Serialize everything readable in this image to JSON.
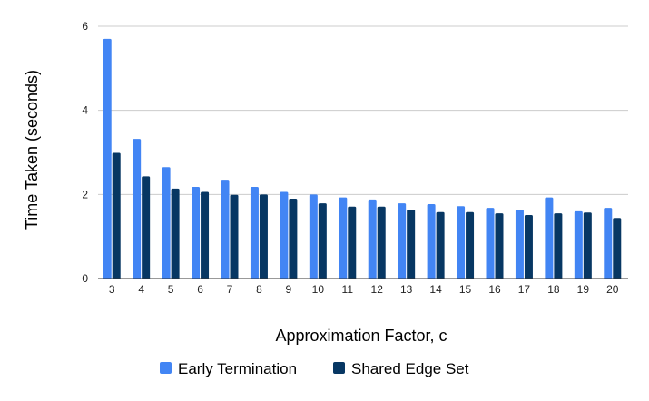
{
  "chart_data": {
    "type": "bar",
    "title": "",
    "xlabel": "Approximation Factor, c",
    "ylabel": "Time Taken (seconds)",
    "ylim": [
      0,
      6
    ],
    "yticks": [
      0,
      2,
      4,
      6
    ],
    "grid": true,
    "legend_position": "bottom",
    "categories": [
      "3",
      "4",
      "5",
      "6",
      "7",
      "8",
      "9",
      "10",
      "11",
      "12",
      "13",
      "14",
      "15",
      "16",
      "17",
      "18",
      "19",
      "20"
    ],
    "series": [
      {
        "name": "Early Termination",
        "color": "#4285f4",
        "values": [
          5.7,
          3.32,
          2.65,
          2.18,
          2.35,
          2.18,
          2.06,
          2.0,
          1.93,
          1.88,
          1.79,
          1.77,
          1.72,
          1.68,
          1.64,
          1.93,
          1.6,
          1.68
        ]
      },
      {
        "name": "Shared Edge Set",
        "color": "#073763",
        "values": [
          2.99,
          2.43,
          2.14,
          2.06,
          1.99,
          2.0,
          1.9,
          1.79,
          1.71,
          1.71,
          1.64,
          1.58,
          1.58,
          1.55,
          1.51,
          1.55,
          1.57,
          1.44
        ]
      }
    ]
  }
}
